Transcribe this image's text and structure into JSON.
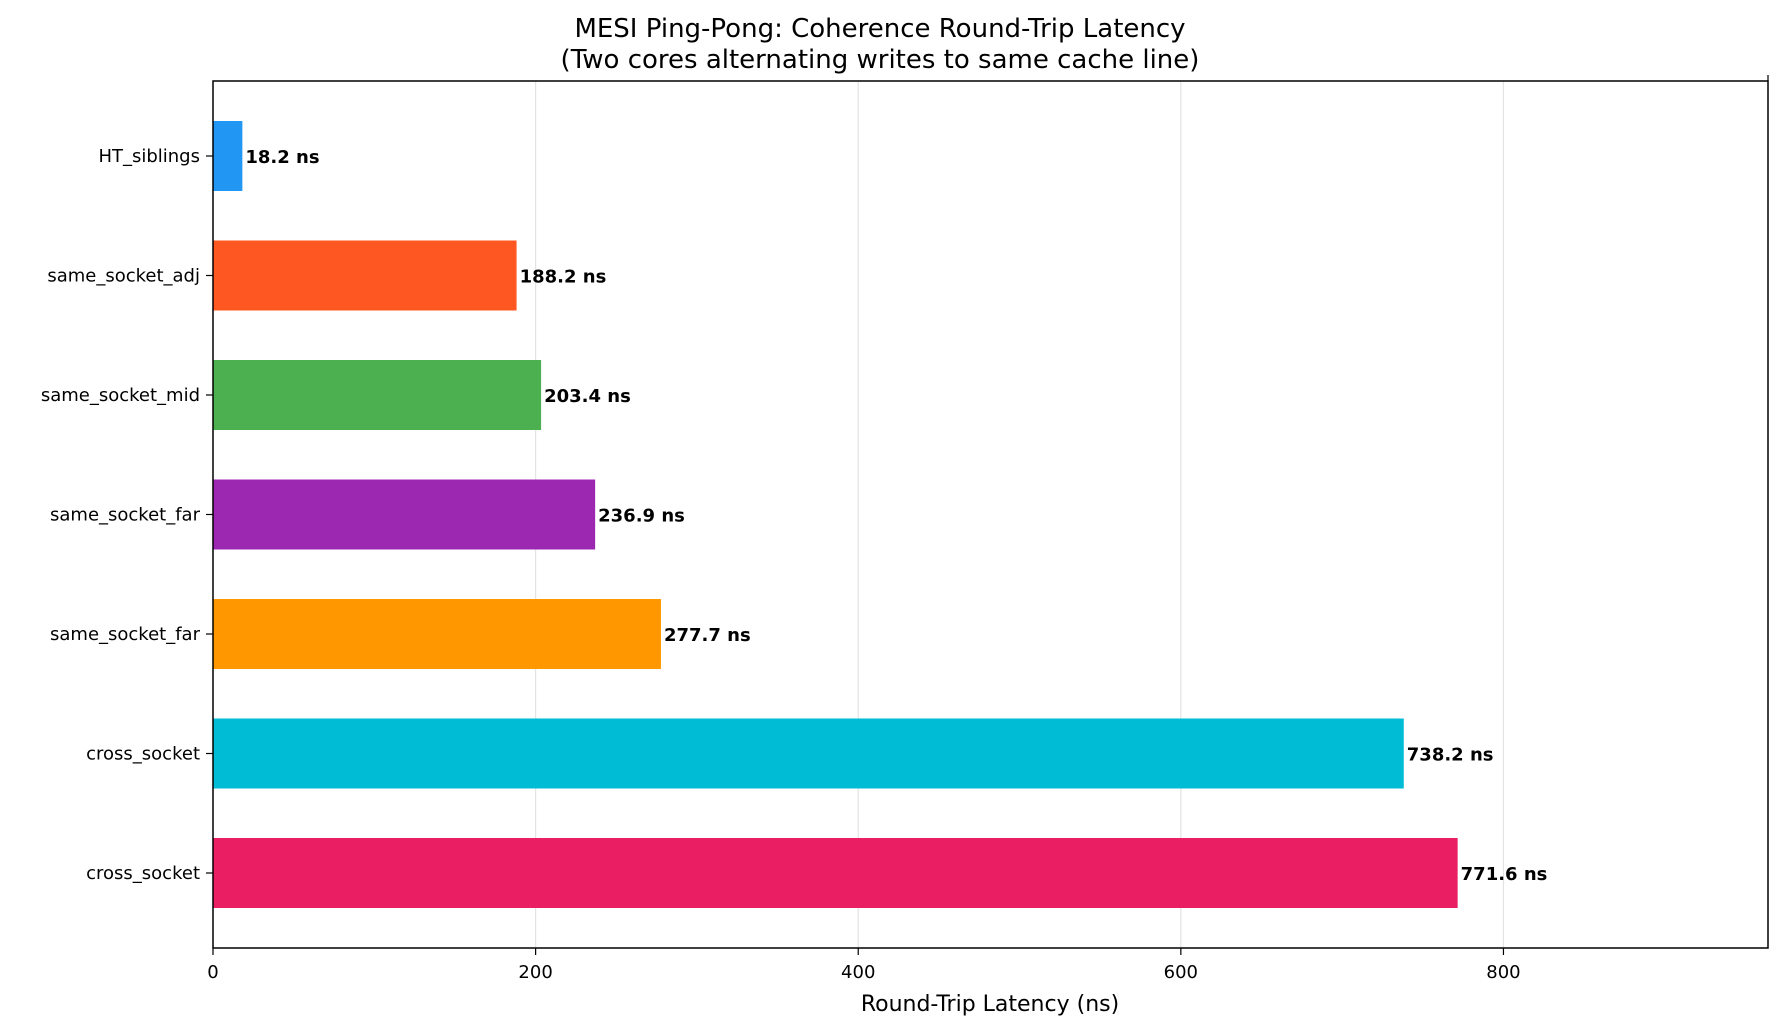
{
  "chart_data": {
    "type": "bar",
    "orientation": "horizontal",
    "title": "MESI Ping-Pong: Coherence Round-Trip Latency",
    "subtitle": "(Two cores alternating writes to same cache line)",
    "xlabel": "Round-Trip Latency (ns)",
    "ylabel": "",
    "xlim": [
      0,
      964
    ],
    "xticks": [
      0,
      200,
      400,
      600,
      800
    ],
    "grid": "x",
    "unit_suffix": " ns",
    "categories": [
      "HT_siblings",
      "same_socket_adj",
      "same_socket_mid",
      "same_socket_far",
      "same_socket_far",
      "cross_socket",
      "cross_socket"
    ],
    "values": [
      18.2,
      188.2,
      203.4,
      236.9,
      277.7,
      738.2,
      771.6
    ],
    "value_labels": [
      "18.2 ns",
      "188.2 ns",
      "203.4 ns",
      "236.9 ns",
      "277.7 ns",
      "738.2 ns",
      "771.6 ns"
    ],
    "colors": [
      "#2196F3",
      "#FF5722",
      "#4CAF50",
      "#9C27B0",
      "#FF9800",
      "#00BCD4",
      "#E91E63"
    ]
  }
}
